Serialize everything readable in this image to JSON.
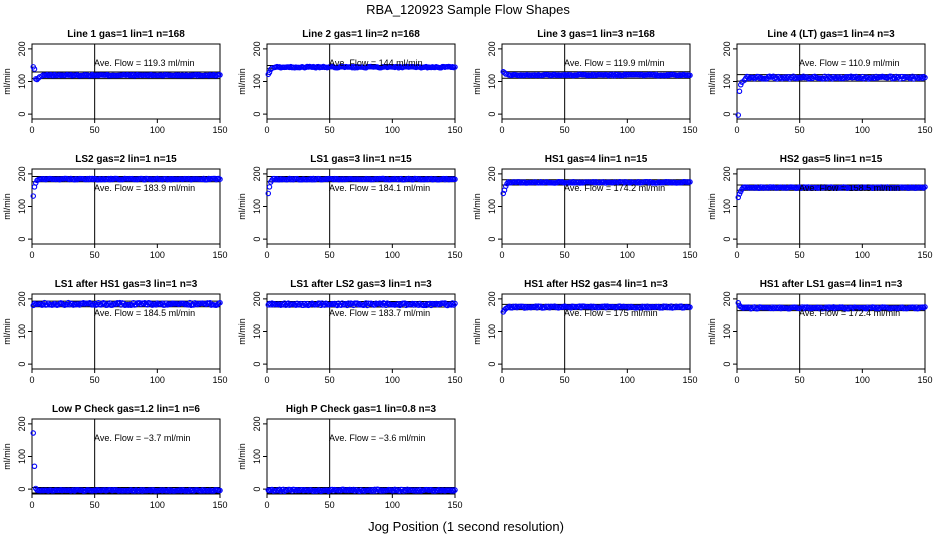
{
  "title": "RBA_120923  Sample Flow Shapes",
  "xlabel": "Jog Position (1 second resolution)",
  "colors": {
    "points": "#0000ff",
    "lines": "#000000",
    "background": "#ffffff"
  },
  "chart_data": [
    {
      "type": "scatter",
      "title": "Line 1 gas=1 lin=1 n=168",
      "ylabel": "ml/min",
      "annotation": "Ave. Flow =  119.3  ml/min",
      "xlim": [
        0,
        150
      ],
      "ylim": [
        -15,
        215
      ],
      "xticks": [
        0,
        50,
        100,
        150
      ],
      "yticks": [
        0,
        100,
        200
      ],
      "hlines": [
        109,
        129
      ],
      "vline": 50,
      "initial_points": [
        [
          1,
          145
        ],
        [
          2,
          138
        ],
        [
          3,
          108
        ],
        [
          4,
          106
        ],
        [
          5,
          110
        ],
        [
          6,
          114
        ],
        [
          8,
          117
        ]
      ],
      "steady_value": 119.3,
      "noise": 2
    },
    {
      "type": "scatter",
      "title": "Line 2 gas=1 lin=2 n=168",
      "ylabel": "ml/min",
      "annotation": "Ave. Flow = 144  ml/min",
      "xlim": [
        0,
        150
      ],
      "ylim": [
        -15,
        215
      ],
      "xticks": [
        0,
        50,
        100,
        150
      ],
      "yticks": [
        0,
        100,
        200
      ],
      "hlines": [
        139,
        149
      ],
      "vline": 50,
      "initial_points": [
        [
          1,
          122
        ],
        [
          2,
          128
        ],
        [
          3,
          137
        ],
        [
          4,
          141
        ],
        [
          6,
          143
        ]
      ],
      "steady_value": 144,
      "noise": 2
    },
    {
      "type": "scatter",
      "title": "Line 3 gas=1 lin=3 n=168",
      "ylabel": "ml/min",
      "annotation": "Ave. Flow =  119.9  ml/min",
      "xlim": [
        0,
        150
      ],
      "ylim": [
        -15,
        215
      ],
      "xticks": [
        0,
        50,
        100,
        150
      ],
      "yticks": [
        0,
        100,
        200
      ],
      "hlines": [
        110,
        130
      ],
      "vline": 50,
      "initial_points": [
        [
          1,
          130
        ],
        [
          2,
          127
        ],
        [
          3,
          123
        ],
        [
          5,
          121
        ]
      ],
      "steady_value": 119.9,
      "noise": 2
    },
    {
      "type": "scatter",
      "title": "Line 4 (LT) gas=1 lin=4 n=3",
      "ylabel": "ml/min",
      "annotation": "Ave. Flow =  110.9  ml/min",
      "xlim": [
        0,
        150
      ],
      "ylim": [
        -15,
        215
      ],
      "xticks": [
        0,
        50,
        100,
        150
      ],
      "yticks": [
        0,
        100,
        200
      ],
      "hlines": [
        101,
        121
      ],
      "vline": 50,
      "initial_points": [
        [
          1,
          -3
        ],
        [
          2,
          70
        ],
        [
          3,
          90
        ],
        [
          4,
          98
        ],
        [
          6,
          104
        ]
      ],
      "steady_value": 112,
      "noise": 4
    },
    {
      "type": "scatter",
      "title": "LS2 gas=2 lin=1 n=15",
      "ylabel": "ml/min",
      "annotation": "Ave. Flow =  183.9  ml/min",
      "xlim": [
        0,
        150
      ],
      "ylim": [
        -15,
        215
      ],
      "xticks": [
        0,
        50,
        100,
        150
      ],
      "yticks": [
        0,
        100,
        200
      ],
      "hlines": [
        176,
        192
      ],
      "vline": 50,
      "initial_points": [
        [
          1,
          132
        ],
        [
          2,
          160
        ],
        [
          3,
          172
        ],
        [
          4,
          180
        ]
      ],
      "steady_value": 184,
      "noise": 2
    },
    {
      "type": "scatter",
      "title": "LS1 gas=3 lin=1 n=15",
      "ylabel": "ml/min",
      "annotation": "Ave. Flow =  184.1  ml/min",
      "xlim": [
        0,
        150
      ],
      "ylim": [
        -15,
        215
      ],
      "xticks": [
        0,
        50,
        100,
        150
      ],
      "yticks": [
        0,
        100,
        200
      ],
      "hlines": [
        176,
        192
      ],
      "vline": 50,
      "initial_points": [
        [
          1,
          140
        ],
        [
          2,
          160
        ],
        [
          3,
          175
        ],
        [
          4,
          181
        ]
      ],
      "steady_value": 184,
      "noise": 2
    },
    {
      "type": "scatter",
      "title": "HS1 gas=4 lin=1 n=15",
      "ylabel": "ml/min",
      "annotation": "Ave. Flow =  174.2  ml/min",
      "xlim": [
        0,
        150
      ],
      "ylim": [
        -15,
        215
      ],
      "xticks": [
        0,
        50,
        100,
        150
      ],
      "yticks": [
        0,
        100,
        200
      ],
      "hlines": [
        166,
        182
      ],
      "vline": 50,
      "initial_points": [
        [
          1,
          140
        ],
        [
          2,
          150
        ],
        [
          3,
          162
        ],
        [
          4,
          170
        ]
      ],
      "steady_value": 174,
      "noise": 2
    },
    {
      "type": "scatter",
      "title": "HS2 gas=5 lin=1 n=15",
      "ylabel": "ml/min",
      "annotation": "Ave. Flow =  158.5  ml/min",
      "xlim": [
        0,
        150
      ],
      "ylim": [
        -15,
        215
      ],
      "xticks": [
        0,
        50,
        100,
        150
      ],
      "yticks": [
        0,
        100,
        200
      ],
      "hlines": [
        150,
        166
      ],
      "vline": 50,
      "initial_points": [
        [
          1,
          128
        ],
        [
          2,
          138
        ],
        [
          3,
          146
        ],
        [
          4,
          153
        ]
      ],
      "steady_value": 158,
      "noise": 2
    },
    {
      "type": "scatter",
      "title": "LS1 after HS1 gas=3 lin=1 n=3",
      "ylabel": "ml/min",
      "annotation": "Ave. Flow =  184.5  ml/min",
      "xlim": [
        0,
        150
      ],
      "ylim": [
        -15,
        215
      ],
      "xticks": [
        0,
        50,
        100,
        150
      ],
      "yticks": [
        0,
        100,
        200
      ],
      "hlines": [
        176,
        193
      ],
      "vline": 50,
      "initial_points": [
        [
          1,
          180
        ],
        [
          2,
          186
        ]
      ],
      "steady_value": 184.5,
      "noise": 4
    },
    {
      "type": "scatter",
      "title": "LS1 after LS2 gas=3 lin=1 n=3",
      "ylabel": "ml/min",
      "annotation": "Ave. Flow =  183.7  ml/min",
      "xlim": [
        0,
        150
      ],
      "ylim": [
        -15,
        215
      ],
      "xticks": [
        0,
        50,
        100,
        150
      ],
      "yticks": [
        0,
        100,
        200
      ],
      "hlines": [
        175,
        192
      ],
      "vline": 50,
      "initial_points": [
        [
          1,
          182
        ],
        [
          2,
          186
        ]
      ],
      "steady_value": 183.7,
      "noise": 4
    },
    {
      "type": "scatter",
      "title": "HS1 after HS2 gas=4 lin=1 n=3",
      "ylabel": "ml/min",
      "annotation": "Ave. Flow =  175  ml/min",
      "xlim": [
        0,
        150
      ],
      "ylim": [
        -15,
        215
      ],
      "xticks": [
        0,
        50,
        100,
        150
      ],
      "yticks": [
        0,
        100,
        200
      ],
      "hlines": [
        167,
        183
      ],
      "vline": 50,
      "initial_points": [
        [
          1,
          160
        ],
        [
          2,
          166
        ],
        [
          3,
          170
        ]
      ],
      "steady_value": 175,
      "noise": 3
    },
    {
      "type": "scatter",
      "title": "HS1 after LS1 gas=4 lin=1 n=3",
      "ylabel": "ml/min",
      "annotation": "Ave. Flow =  172.4  ml/min",
      "xlim": [
        0,
        150
      ],
      "ylim": [
        -15,
        215
      ],
      "xticks": [
        0,
        50,
        100,
        150
      ],
      "yticks": [
        0,
        100,
        200
      ],
      "hlines": [
        164,
        181
      ],
      "vline": 50,
      "initial_points": [
        [
          1,
          188
        ],
        [
          2,
          180
        ]
      ],
      "steady_value": 172.4,
      "noise": 3
    },
    {
      "type": "scatter",
      "title": "Low P Check gas=1.2 lin=1 n=6",
      "ylabel": "ml/min",
      "annotation": "Ave. Flow =  −3.7  ml/min",
      "xlim": [
        0,
        150
      ],
      "ylim": [
        -15,
        215
      ],
      "xticks": [
        0,
        50,
        100,
        150
      ],
      "yticks": [
        0,
        100,
        200
      ],
      "hlines": [
        -12,
        5
      ],
      "vline": 50,
      "initial_points": [
        [
          1,
          172
        ],
        [
          2,
          70
        ],
        [
          3,
          2
        ]
      ],
      "steady_value": -4,
      "noise": 2
    },
    {
      "type": "scatter",
      "title": "High P Check gas=1 lin=0.8 n=3",
      "ylabel": "ml/min",
      "annotation": "Ave. Flow =  −3.6  ml/min",
      "xlim": [
        0,
        150
      ],
      "ylim": [
        -15,
        215
      ],
      "xticks": [
        0,
        50,
        100,
        150
      ],
      "yticks": [
        0,
        100,
        200
      ],
      "hlines": [
        -12,
        5
      ],
      "vline": 50,
      "initial_points": [
        [
          1,
          -3
        ],
        [
          2,
          -5
        ]
      ],
      "steady_value": -3.6,
      "noise": 3
    }
  ]
}
